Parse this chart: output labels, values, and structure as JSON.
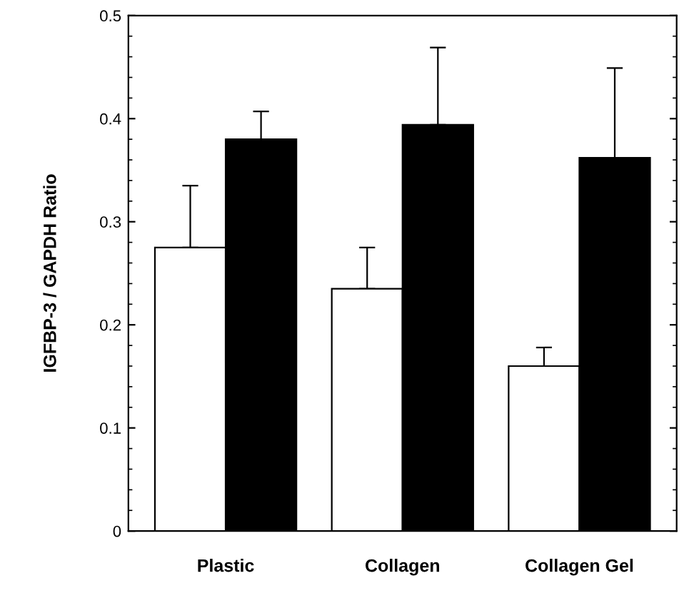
{
  "chart_data": {
    "type": "bar",
    "ylabel": "IGFBP-3 / GAPDH Ratio",
    "categories": [
      "Plastic",
      "Collagen",
      "Collagen Gel"
    ],
    "series": [
      {
        "color": "#ffffff",
        "values": [
          0.275,
          0.235,
          0.16
        ],
        "errors": [
          [
            0.275,
            0.335
          ],
          [
            0.235,
            0.275
          ],
          [
            0.16,
            0.178
          ]
        ]
      },
      {
        "color": "#000000",
        "values": [
          0.38,
          0.394,
          0.362
        ],
        "errors": [
          [
            0.38,
            0.407
          ],
          [
            0.394,
            0.469
          ],
          [
            0.362,
            0.449
          ]
        ]
      }
    ],
    "ylim": [
      0,
      0.5
    ],
    "yticks": [
      0,
      0.1,
      0.2,
      0.3,
      0.4,
      0.5
    ],
    "grid": false,
    "legend": false
  }
}
